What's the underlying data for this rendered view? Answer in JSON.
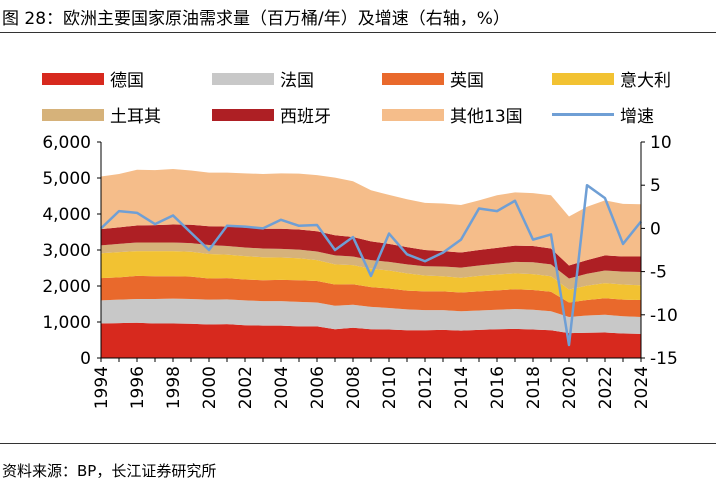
{
  "figure": {
    "title": "图 28：欧洲主要国家原油需求量（百万桶/年）及增速（右轴，%）",
    "source": "资料来源：BP，长江证券研究所"
  },
  "chart_data": {
    "type": "area",
    "stacked": true,
    "categories": [
      1994,
      1995,
      1996,
      1997,
      1998,
      1999,
      2000,
      2001,
      2002,
      2003,
      2004,
      2005,
      2006,
      2007,
      2008,
      2009,
      2010,
      2011,
      2012,
      2013,
      2014,
      2015,
      2016,
      2017,
      2018,
      2019,
      2020,
      2021,
      2022,
      2023,
      2024
    ],
    "x_tick_labels": [
      "1994",
      "1996",
      "1998",
      "2000",
      "2002",
      "2004",
      "2006",
      "2008",
      "2010",
      "2012",
      "2014",
      "2016",
      "2018",
      "2020",
      "2022",
      "2024"
    ],
    "series": [
      {
        "name": "德国",
        "color": "#d7291e",
        "values": [
          960,
          970,
          980,
          960,
          960,
          950,
          930,
          940,
          910,
          900,
          900,
          880,
          880,
          800,
          840,
          800,
          790,
          770,
          770,
          780,
          760,
          780,
          800,
          810,
          790,
          770,
          690,
          700,
          710,
          680,
          670
        ]
      },
      {
        "name": "法国",
        "color": "#c8c8c8",
        "values": [
          640,
          650,
          660,
          680,
          690,
          690,
          690,
          690,
          690,
          680,
          680,
          680,
          660,
          650,
          640,
          620,
          600,
          580,
          560,
          550,
          540,
          540,
          540,
          550,
          550,
          530,
          450,
          480,
          490,
          480,
          470
        ]
      },
      {
        "name": "英国",
        "color": "#e9692c",
        "values": [
          620,
          620,
          640,
          630,
          620,
          620,
          590,
          590,
          580,
          580,
          590,
          600,
          600,
          590,
          570,
          550,
          540,
          520,
          520,
          520,
          520,
          530,
          540,
          550,
          550,
          540,
          400,
          430,
          460,
          460,
          470
        ]
      },
      {
        "name": "意大利",
        "color": "#f2c232",
        "values": [
          690,
          700,
          690,
          700,
          700,
          690,
          680,
          650,
          650,
          640,
          620,
          610,
          580,
          560,
          530,
          510,
          500,
          480,
          440,
          420,
          410,
          430,
          440,
          440,
          440,
          430,
          360,
          400,
          420,
          420,
          410
        ]
      },
      {
        "name": "土耳其",
        "color": "#d6b27a",
        "values": [
          220,
          230,
          240,
          240,
          240,
          240,
          250,
          240,
          240,
          240,
          240,
          240,
          240,
          250,
          240,
          240,
          240,
          250,
          260,
          270,
          280,
          290,
          300,
          320,
          330,
          330,
          310,
          330,
          350,
          360,
          370
        ]
      },
      {
        "name": "西班牙",
        "color": "#ae1f24",
        "values": [
          450,
          460,
          470,
          480,
          500,
          510,
          520,
          540,
          550,
          550,
          560,
          560,
          560,
          560,
          540,
          520,
          500,
          480,
          450,
          430,
          420,
          430,
          440,
          450,
          450,
          440,
          360,
          380,
          420,
          420,
          430
        ]
      },
      {
        "name": "其他13国",
        "color": "#f5bd8a",
        "values": [
          1460,
          1480,
          1550,
          1530,
          1540,
          1510,
          1490,
          1500,
          1510,
          1520,
          1540,
          1550,
          1560,
          1600,
          1550,
          1420,
          1360,
          1330,
          1310,
          1320,
          1320,
          1380,
          1460,
          1480,
          1470,
          1480,
          1360,
          1480,
          1530,
          1460,
          1450
        ]
      },
      {
        "name": "增速",
        "color": "#6f9fd5",
        "axis": "right",
        "values": [
          0.0,
          2.0,
          1.8,
          0.5,
          1.5,
          -0.5,
          -2.5,
          0.3,
          0.2,
          0.0,
          1.0,
          0.3,
          0.4,
          -2.5,
          -1.0,
          -5.5,
          -0.6,
          -3.0,
          -3.8,
          -2.8,
          -1.3,
          2.3,
          2.0,
          3.2,
          -1.3,
          -0.7,
          -13.5,
          5.0,
          3.5,
          -1.8,
          0.8
        ]
      }
    ],
    "y_left": {
      "min": 0,
      "max": 6000,
      "ticks": [
        0,
        1000,
        2000,
        3000,
        4000,
        5000,
        6000
      ],
      "tick_labels": [
        "0",
        "1,000",
        "2,000",
        "3,000",
        "4,000",
        "5,000",
        "6,000"
      ]
    },
    "y_right": {
      "min": -15,
      "max": 10,
      "ticks": [
        -15,
        -10,
        -5,
        0,
        5,
        10
      ],
      "tick_labels": [
        "-15",
        "-10",
        "-5",
        "0",
        "5",
        "10"
      ]
    },
    "legend": [
      {
        "label": "德国",
        "kind": "area",
        "color": "#d7291e"
      },
      {
        "label": "法国",
        "kind": "area",
        "color": "#c8c8c8"
      },
      {
        "label": "英国",
        "kind": "area",
        "color": "#e9692c"
      },
      {
        "label": "意大利",
        "kind": "area",
        "color": "#f2c232"
      },
      {
        "label": "土耳其",
        "kind": "area",
        "color": "#d6b27a"
      },
      {
        "label": "西班牙",
        "kind": "area",
        "color": "#ae1f24"
      },
      {
        "label": "其他13国",
        "kind": "area",
        "color": "#f5bd8a"
      },
      {
        "label": "增速",
        "kind": "line",
        "color": "#6f9fd5"
      }
    ],
    "legend_position": "top"
  }
}
